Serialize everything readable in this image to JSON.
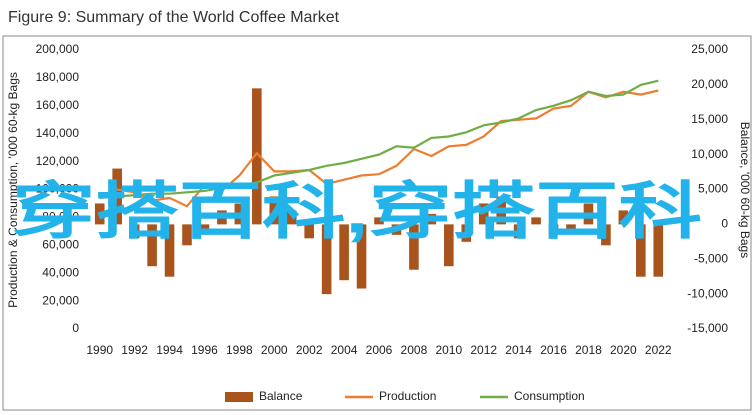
{
  "chart_data": {
    "type": "bar-line",
    "title": "Figure 9: Summary of the World Coffee Market",
    "ylabel": "Production & Consumption, '000 60-kg Bags",
    "y2label": "Balance, '000 60-kg Bags",
    "watermark": "穿搭百科,穿搭百科",
    "x": [
      1990,
      1991,
      1992,
      1993,
      1994,
      1995,
      1996,
      1997,
      1998,
      1999,
      2000,
      2001,
      2002,
      2003,
      2004,
      2005,
      2006,
      2007,
      2008,
      2009,
      2010,
      2011,
      2012,
      2013,
      2014,
      2015,
      2016,
      2017,
      2018,
      2019,
      2020,
      2021,
      2022
    ],
    "xlim": [
      1989.5,
      2022.5
    ],
    "xticks": [
      1990,
      1992,
      1994,
      1996,
      1998,
      2000,
      2002,
      2004,
      2006,
      2008,
      2010,
      2012,
      2014,
      2016,
      2018,
      2020,
      2022
    ],
    "ylim": [
      0,
      200000
    ],
    "yticks": [
      0,
      {
        "value": 20000,
        "label": "20,000"
      },
      {
        "value": 40000,
        "label": "40,000"
      },
      {
        "value": 60000,
        "label": "60,000"
      },
      {
        "value": 80000,
        "label": "80,000"
      },
      {
        "value": 100000,
        "label": "100,000"
      },
      {
        "value": 120000,
        "label": "120,000"
      },
      {
        "value": 140000,
        "label": "140,000"
      },
      {
        "value": 160000,
        "label": "160,000"
      },
      {
        "value": 180000,
        "label": "180,000"
      },
      {
        "value": 200000,
        "label": "200,000"
      }
    ],
    "y2lim": [
      -15000,
      25000
    ],
    "y2ticks": [
      {
        "value": -15000,
        "label": "-15,000"
      },
      {
        "value": -10000,
        "label": "-10,000"
      },
      {
        "value": -5000,
        "label": "-5,000"
      },
      0,
      {
        "value": 5000,
        "label": "5,000"
      },
      {
        "value": 10000,
        "label": "10,000"
      },
      {
        "value": 15000,
        "label": "15,000"
      },
      {
        "value": 20000,
        "label": "20,000"
      },
      {
        "value": 25000,
        "label": "25,000"
      }
    ],
    "series": [
      {
        "name": "Balance",
        "type": "bar",
        "axis": "y2",
        "color": "#a9541c",
        "values": [
          3000,
          8000,
          -2000,
          -6000,
          -7500,
          -3000,
          -1000,
          2000,
          3000,
          19500,
          4000,
          2000,
          -2000,
          -10000,
          -8000,
          -9200,
          1000,
          -1500,
          -6500,
          1500,
          -6000,
          -2500,
          3000,
          4000,
          -2000,
          1000,
          -1500,
          -1000,
          3000,
          -3000,
          2000,
          -7500,
          -7500
        ]
      },
      {
        "name": "Production",
        "type": "line",
        "color": "#ed7d31",
        "values": [
          94000,
          100000,
          98000,
          92000,
          94000,
          88000,
          103000,
          99000,
          110000,
          126000,
          113000,
          113000,
          114000,
          104000,
          107000,
          110000,
          111000,
          117000,
          129000,
          124000,
          131000,
          132000,
          138000,
          149000,
          150000,
          151000,
          158000,
          160000,
          170000,
          166000,
          170000,
          168000,
          171000
        ]
      },
      {
        "name": "Consumption",
        "type": "line",
        "color": "#70ad47",
        "values": [
          94000,
          95000,
          96000,
          97000,
          97000,
          98000,
          99000,
          101000,
          103000,
          105000,
          110000,
          112000,
          114000,
          117000,
          119000,
          122000,
          125000,
          131000,
          130000,
          137000,
          138000,
          141000,
          146000,
          148000,
          151000,
          157000,
          160000,
          164000,
          170000,
          167000,
          168000,
          175000,
          178000
        ]
      }
    ]
  }
}
